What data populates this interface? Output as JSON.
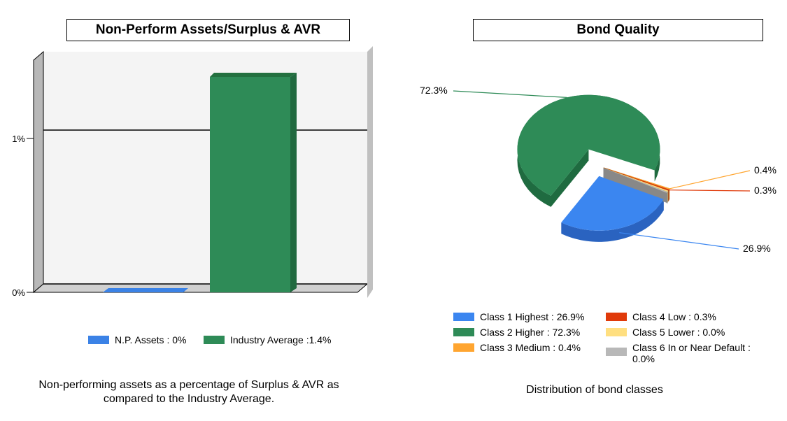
{
  "chart_data": [
    {
      "type": "bar",
      "title": "Non-Perform Assets/Surplus & AVR",
      "categories": [
        "N.P. Assets",
        "Industry Average"
      ],
      "values": [
        0,
        1.4
      ],
      "ylim": [
        0,
        1.5
      ],
      "yticks": [
        "0%",
        "1%"
      ],
      "grid": true,
      "series_colors": [
        "#3b82e6",
        "#2e8b57"
      ],
      "legend": [
        "N.P. Assets : 0%",
        "Industry Average :1.4%"
      ],
      "legend_position": "bottom",
      "caption": "Non-performing assets as a percentage of Surplus & AVR as compared to the Industry Average."
    },
    {
      "type": "pie",
      "title": "Bond Quality",
      "slices": [
        {
          "name": "Class 1 Highest",
          "value": 26.9,
          "label": "26.9%",
          "legend": "Class 1 Highest : 26.9%",
          "color": "#3b86f0"
        },
        {
          "name": "Class 2 Higher",
          "value": 72.3,
          "label": "72.3%",
          "legend": "Class 2 Higher : 72.3%",
          "color": "#2e8b57"
        },
        {
          "name": "Class 3 Medium",
          "value": 0.4,
          "label": "0.4%",
          "legend": "Class 3 Medium : 0.4%",
          "color": "#ffa530"
        },
        {
          "name": "Class 4 Low",
          "value": 0.3,
          "label": "0.3%",
          "legend": "Class 4 Low : 0.3%",
          "color": "#e03a0a"
        },
        {
          "name": "Class 5 Lower",
          "value": 0.0,
          "legend": "Class 5 Lower : 0.0%",
          "color": "#ffdf80"
        },
        {
          "name": "Class 6 In or Near Default",
          "value": 0.0,
          "legend": "Class 6 In or Near Default : 0.0%",
          "color": "#b8b8b8"
        }
      ],
      "legend_position": "bottom",
      "caption": "Distribution of bond classes"
    }
  ]
}
